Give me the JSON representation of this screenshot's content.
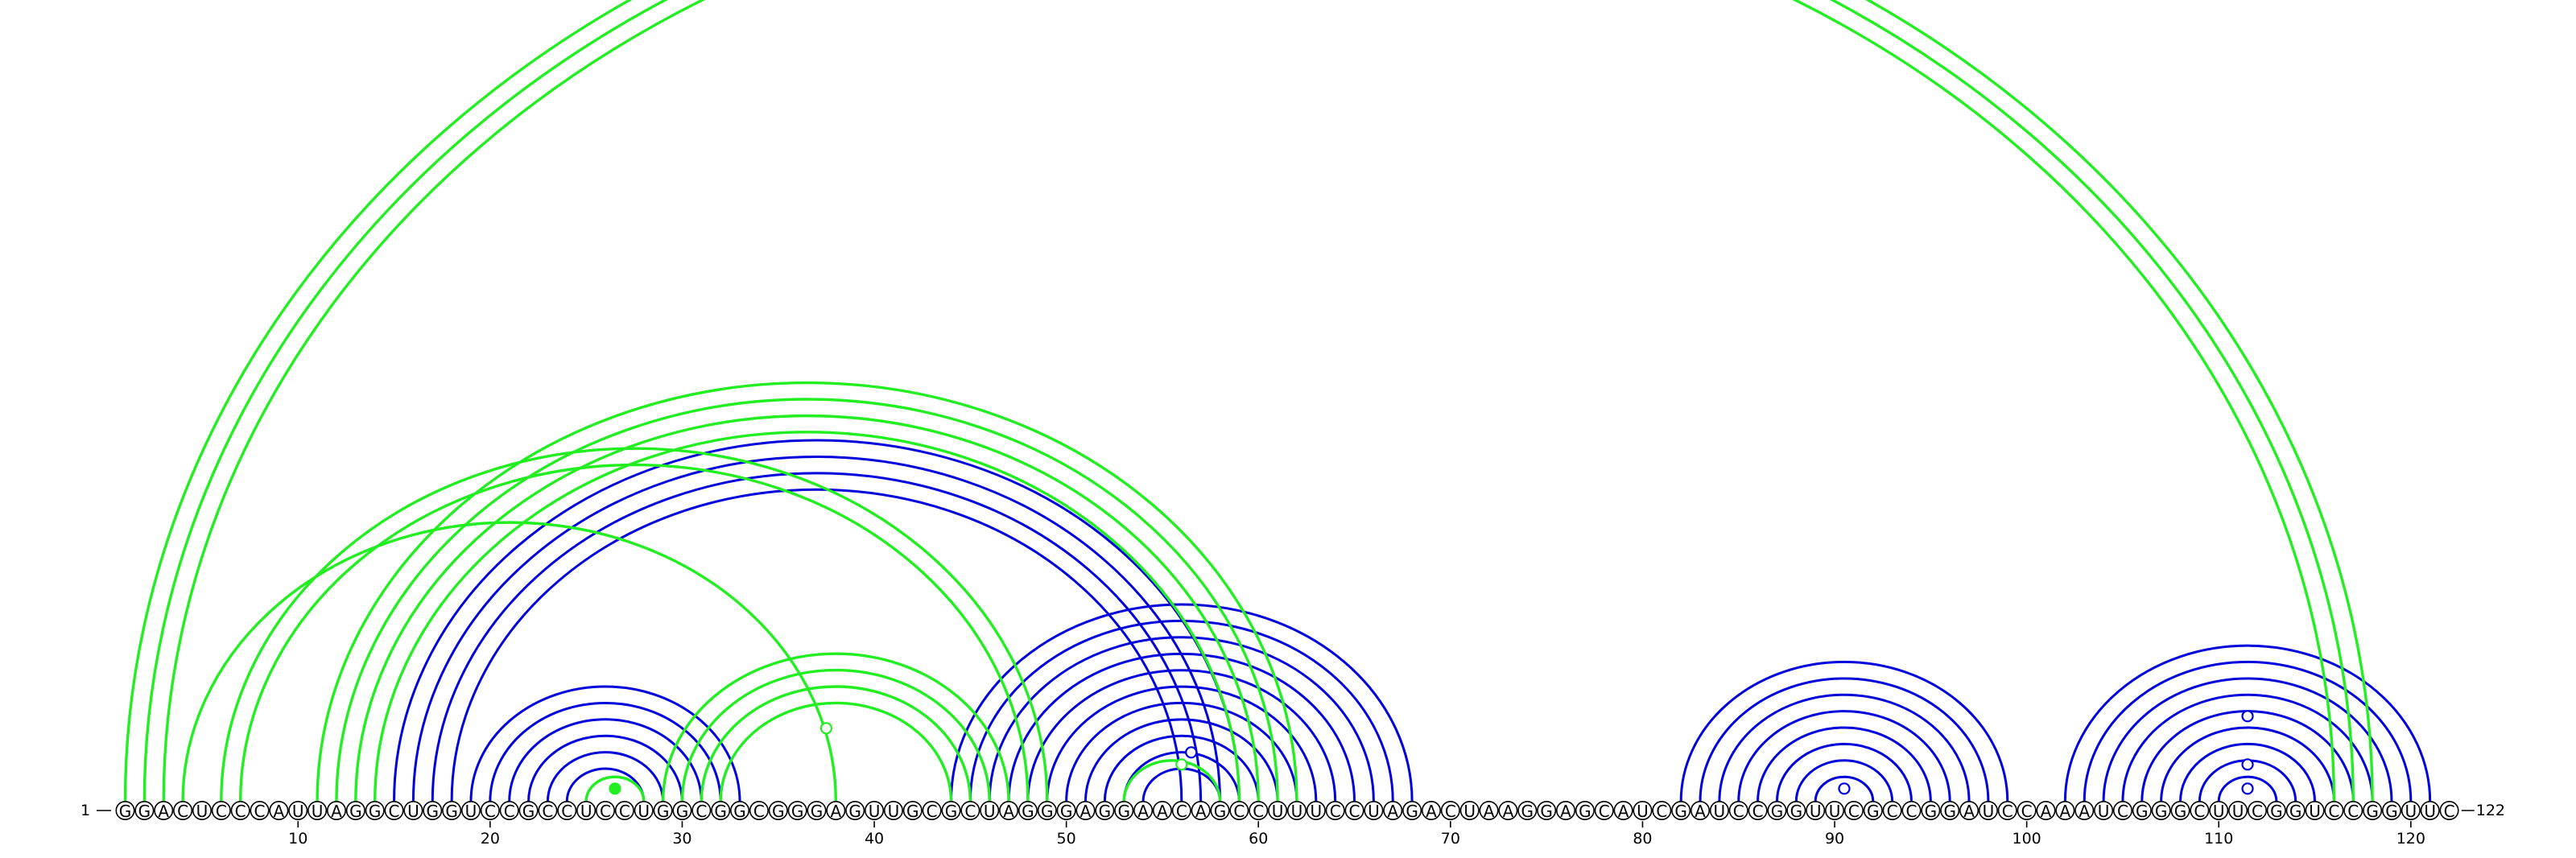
{
  "sequence": "GGACUCCCAUUAGGCUGGUCCGCCUCCUGGCGGCGGGAGUUGCGCUAGGGAGGAACAGCCUUUCCUAGACUAAGGAGCAUCGAUCCGGUUCGCCGGAUCCAAAUCGGGCUUCGGUCCGGUUC",
  "start_label": "1",
  "end_label": "122",
  "tick_labels": [
    "10",
    "20",
    "30",
    "40",
    "50",
    "60",
    "70",
    "80",
    "90",
    "100",
    "110",
    "120"
  ],
  "colors": {
    "pair_blue": "#0000dd",
    "pair_green": "#22ee22",
    "text": "#000000"
  },
  "chart_data": {
    "type": "arc-diagram",
    "sequence_length": 122,
    "pair_series": [
      {
        "color": "blue",
        "pairs": [
          [
            19,
            33
          ],
          [
            20,
            32
          ],
          [
            21,
            31
          ],
          [
            22,
            30
          ],
          [
            23,
            29
          ],
          [
            24,
            28
          ],
          [
            15,
            59
          ],
          [
            16,
            58
          ],
          [
            17,
            57
          ],
          [
            18,
            56
          ],
          [
            44,
            68
          ],
          [
            45,
            67
          ],
          [
            46,
            66
          ],
          [
            47,
            65
          ],
          [
            48,
            64
          ],
          [
            49,
            63
          ],
          [
            50,
            62
          ],
          [
            51,
            61
          ],
          [
            52,
            60
          ],
          [
            53,
            59
          ],
          [
            54,
            58
          ],
          [
            82,
            99
          ],
          [
            83,
            98
          ],
          [
            84,
            97
          ],
          [
            85,
            96
          ],
          [
            86,
            95
          ],
          [
            87,
            94
          ],
          [
            88,
            93
          ],
          [
            89,
            92
          ],
          [
            102,
            121
          ],
          [
            103,
            120
          ],
          [
            104,
            119
          ],
          [
            105,
            118
          ],
          [
            106,
            117
          ],
          [
            107,
            116
          ],
          [
            108,
            115
          ],
          [
            109,
            114
          ],
          [
            110,
            113
          ]
        ]
      },
      {
        "color": "green",
        "pairs": [
          [
            1,
            118
          ],
          [
            2,
            117
          ],
          [
            3,
            116
          ],
          [
            4,
            38
          ],
          [
            6,
            49
          ],
          [
            7,
            48
          ],
          [
            11,
            62
          ],
          [
            12,
            61
          ],
          [
            13,
            60
          ],
          [
            14,
            59
          ],
          [
            29,
            47
          ],
          [
            30,
            46
          ],
          [
            31,
            45
          ],
          [
            32,
            44
          ],
          [
            53,
            58
          ],
          [
            25,
            28
          ]
        ]
      }
    ],
    "markers": [
      {
        "position": 26.5,
        "color": "green",
        "filled": true,
        "level": 0
      },
      {
        "position": 37.5,
        "color": "green",
        "filled": false,
        "level": 5
      },
      {
        "position": 56.5,
        "color": "blue",
        "filled": false,
        "level": 3
      },
      {
        "position": 56,
        "color": "green",
        "filled": false,
        "level": 2
      },
      {
        "position": 90.5,
        "color": "blue",
        "filled": false,
        "level": 0
      },
      {
        "position": 111.5,
        "color": "blue",
        "filled": false,
        "level": 0
      },
      {
        "position": 111.5,
        "color": "blue",
        "filled": false,
        "level": 2
      },
      {
        "position": 111.5,
        "color": "blue",
        "filled": false,
        "level": 6
      }
    ]
  }
}
